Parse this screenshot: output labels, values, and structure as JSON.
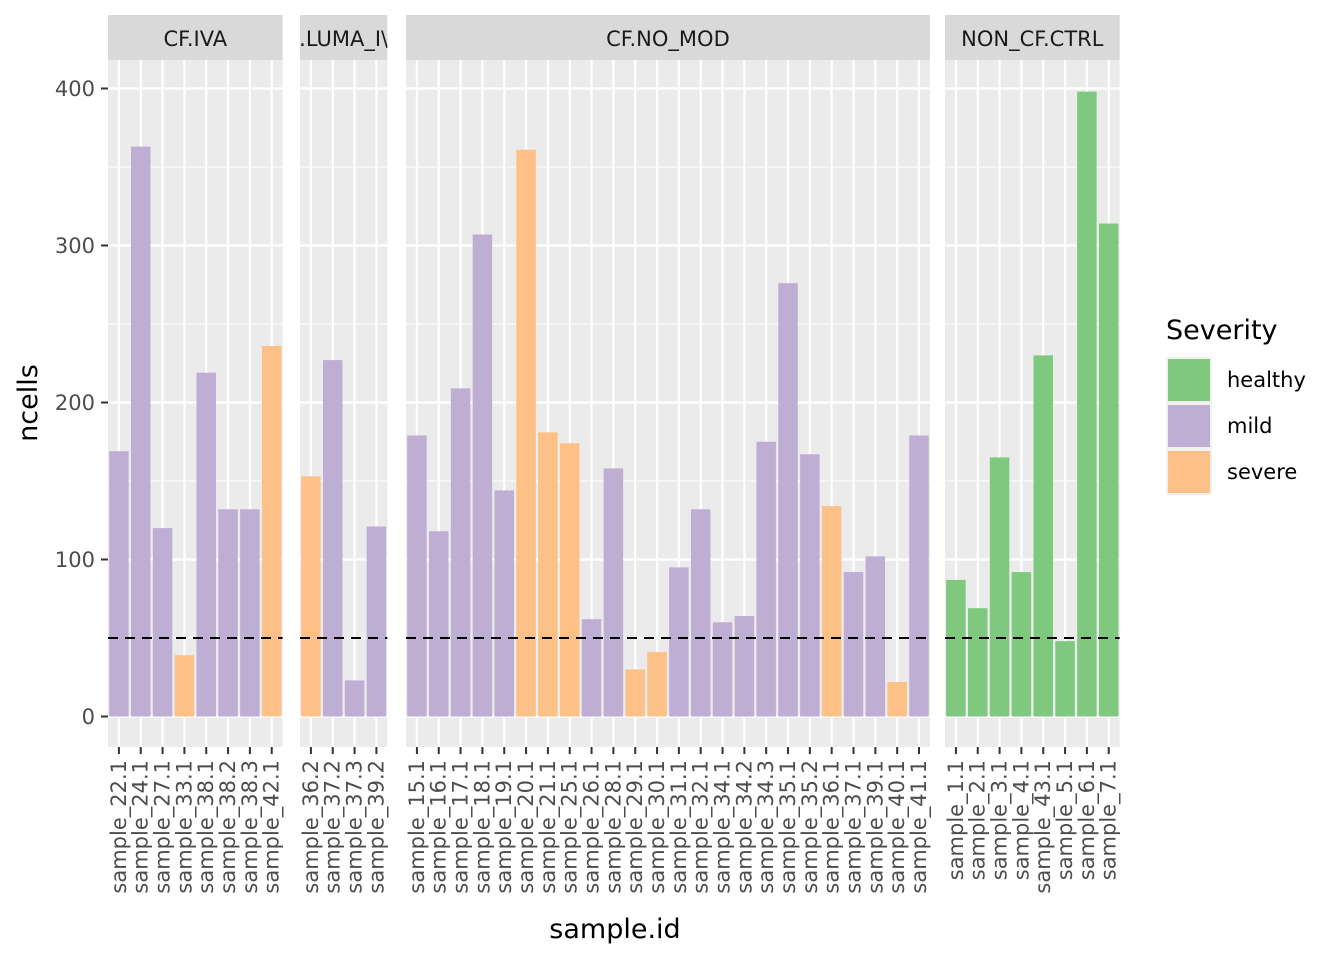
{
  "chart_data": {
    "type": "bar",
    "xlabel": "sample.id",
    "ylabel": "ncells",
    "ylim": [
      -20,
      420
    ],
    "yticks": [
      0,
      100,
      200,
      300,
      400
    ],
    "reference_line": {
      "y": 50,
      "style": "dashed",
      "color": "#000000"
    },
    "grid": true,
    "legend": {
      "title": "Severity",
      "position": "right",
      "entries": [
        {
          "label": "healthy",
          "color": "#7FC97F"
        },
        {
          "label": "mild",
          "color": "#BEAED4"
        },
        {
          "label": "severe",
          "color": "#FDC086"
        }
      ]
    },
    "facets": [
      {
        "label": "CF.IVA",
        "bars": [
          {
            "sample": "sample_22.1",
            "value": 169,
            "severity": "mild"
          },
          {
            "sample": "sample_24.1",
            "value": 363,
            "severity": "mild"
          },
          {
            "sample": "sample_27.1",
            "value": 120,
            "severity": "mild"
          },
          {
            "sample": "sample_33.1",
            "value": 39,
            "severity": "severe"
          },
          {
            "sample": "sample_38.1",
            "value": 219,
            "severity": "mild"
          },
          {
            "sample": "sample_38.2",
            "value": 132,
            "severity": "mild"
          },
          {
            "sample": "sample_38.3",
            "value": 132,
            "severity": "mild"
          },
          {
            "sample": "sample_42.1",
            "value": 236,
            "severity": "severe"
          }
        ]
      },
      {
        "label": ".LUMA_I\\",
        "bars": [
          {
            "sample": "sample_36.2",
            "value": 153,
            "severity": "severe"
          },
          {
            "sample": "sample_37.2",
            "value": 227,
            "severity": "mild"
          },
          {
            "sample": "sample_37.3",
            "value": 23,
            "severity": "mild"
          },
          {
            "sample": "sample_39.2",
            "value": 121,
            "severity": "mild"
          }
        ]
      },
      {
        "label": "CF.NO_MOD",
        "bars": [
          {
            "sample": "sample_15.1",
            "value": 179,
            "severity": "mild"
          },
          {
            "sample": "sample_16.1",
            "value": 118,
            "severity": "mild"
          },
          {
            "sample": "sample_17.1",
            "value": 209,
            "severity": "mild"
          },
          {
            "sample": "sample_18.1",
            "value": 307,
            "severity": "mild"
          },
          {
            "sample": "sample_19.1",
            "value": 144,
            "severity": "mild"
          },
          {
            "sample": "sample_20.1",
            "value": 361,
            "severity": "severe"
          },
          {
            "sample": "sample_21.1",
            "value": 181,
            "severity": "severe"
          },
          {
            "sample": "sample_25.1",
            "value": 174,
            "severity": "severe"
          },
          {
            "sample": "sample_26.1",
            "value": 62,
            "severity": "mild"
          },
          {
            "sample": "sample_28.1",
            "value": 158,
            "severity": "mild"
          },
          {
            "sample": "sample_29.1",
            "value": 30,
            "severity": "severe"
          },
          {
            "sample": "sample_30.1",
            "value": 41,
            "severity": "severe"
          },
          {
            "sample": "sample_31.1",
            "value": 95,
            "severity": "mild"
          },
          {
            "sample": "sample_32.1",
            "value": 132,
            "severity": "mild"
          },
          {
            "sample": "sample_34.1",
            "value": 60,
            "severity": "mild"
          },
          {
            "sample": "sample_34.2",
            "value": 64,
            "severity": "mild"
          },
          {
            "sample": "sample_34.3",
            "value": 175,
            "severity": "mild"
          },
          {
            "sample": "sample_35.1",
            "value": 276,
            "severity": "mild"
          },
          {
            "sample": "sample_35.2",
            "value": 167,
            "severity": "mild"
          },
          {
            "sample": "sample_36.1",
            "value": 134,
            "severity": "severe"
          },
          {
            "sample": "sample_37.1",
            "value": 92,
            "severity": "mild"
          },
          {
            "sample": "sample_39.1",
            "value": 102,
            "severity": "mild"
          },
          {
            "sample": "sample_40.1",
            "value": 22,
            "severity": "severe"
          },
          {
            "sample": "sample_41.1",
            "value": 179,
            "severity": "mild"
          }
        ]
      },
      {
        "label": "NON_CF.CTRL",
        "bars": [
          {
            "sample": "sample_1.1",
            "value": 87,
            "severity": "healthy"
          },
          {
            "sample": "sample_2.1",
            "value": 69,
            "severity": "healthy"
          },
          {
            "sample": "sample_3.1",
            "value": 165,
            "severity": "healthy"
          },
          {
            "sample": "sample_4.1",
            "value": 92,
            "severity": "healthy"
          },
          {
            "sample": "sample_43.1",
            "value": 230,
            "severity": "healthy"
          },
          {
            "sample": "sample_5.1",
            "value": 48,
            "severity": "healthy"
          },
          {
            "sample": "sample_6.1",
            "value": 398,
            "severity": "healthy"
          },
          {
            "sample": "sample_7.1",
            "value": 314,
            "severity": "healthy"
          }
        ]
      }
    ]
  }
}
